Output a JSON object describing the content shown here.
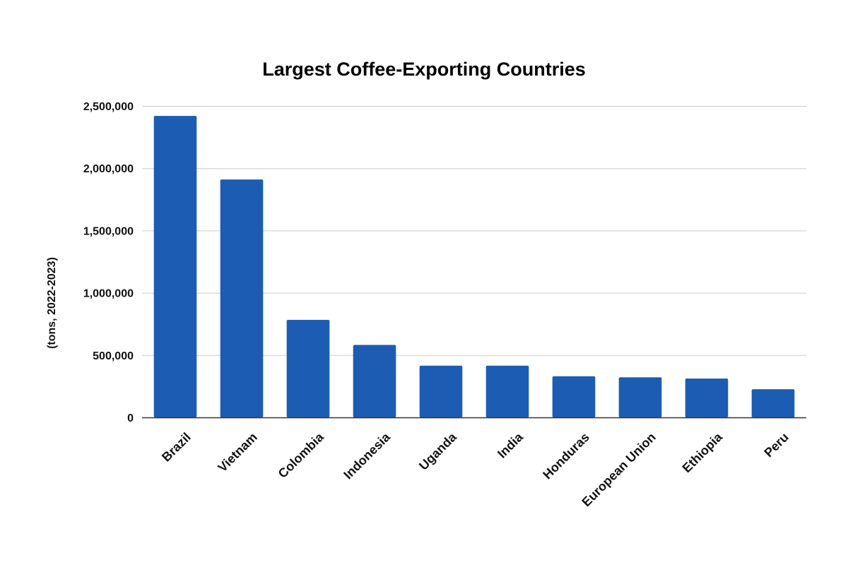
{
  "chart_data": {
    "type": "bar",
    "title": "Largest Coffee-Exporting Countries",
    "xlabel": "",
    "ylabel": "(tons, 2022-2023)",
    "categories": [
      "Brazil",
      "Vietnam",
      "Colombia",
      "Indonesia",
      "Uganda",
      "India",
      "Honduras",
      "European Union",
      "Ethiopia",
      "Peru"
    ],
    "values": [
      2420000,
      1910000,
      783000,
      582000,
      415000,
      415000,
      330000,
      322000,
      312000,
      226000
    ],
    "ylim": [
      0,
      2500000
    ],
    "yticks": [
      "0",
      "500,000",
      "1,000,000",
      "1,500,000",
      "2,000,000",
      "2,500,000"
    ],
    "bar_color": "#1c5db3",
    "grid": true,
    "legend": "none"
  }
}
